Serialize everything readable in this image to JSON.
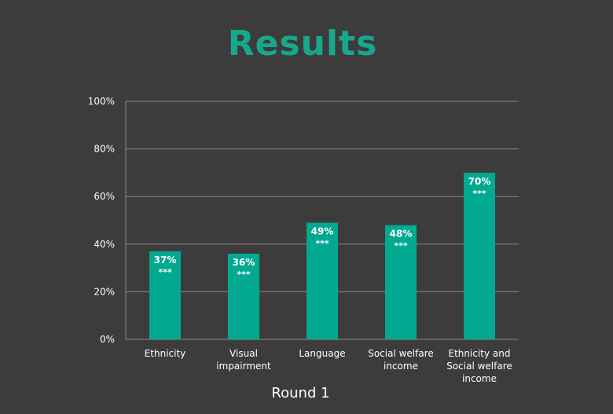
{
  "title": "Results",
  "chart_data": {
    "type": "bar",
    "categories": [
      "Ethnicity",
      "Visual impairment",
      "Language",
      "Social welfare income",
      "Ethnicity and Social welfare income"
    ],
    "category_lines": [
      [
        "Ethnicity"
      ],
      [
        "Visual",
        "impairment"
      ],
      [
        "Language"
      ],
      [
        "Social welfare",
        "income"
      ],
      [
        "Ethnicity and",
        "Social welfare",
        "income"
      ]
    ],
    "values": [
      37,
      36,
      49,
      48,
      70
    ],
    "data_labels": [
      "37%",
      "36%",
      "49%",
      "48%",
      "70%"
    ],
    "significance": [
      "***",
      "***",
      "***",
      "***",
      "***"
    ],
    "xlabel": "Round 1",
    "ylabel": "",
    "ylim": [
      0,
      100
    ],
    "yticks": [
      0,
      20,
      40,
      60,
      80,
      100
    ],
    "ytick_labels": [
      "0%",
      "20%",
      "40%",
      "60%",
      "80%",
      "100%"
    ],
    "grid": true,
    "bar_color": "#00a98f",
    "text_color": "#ffffff",
    "grid_color": "#8a8a8a"
  }
}
